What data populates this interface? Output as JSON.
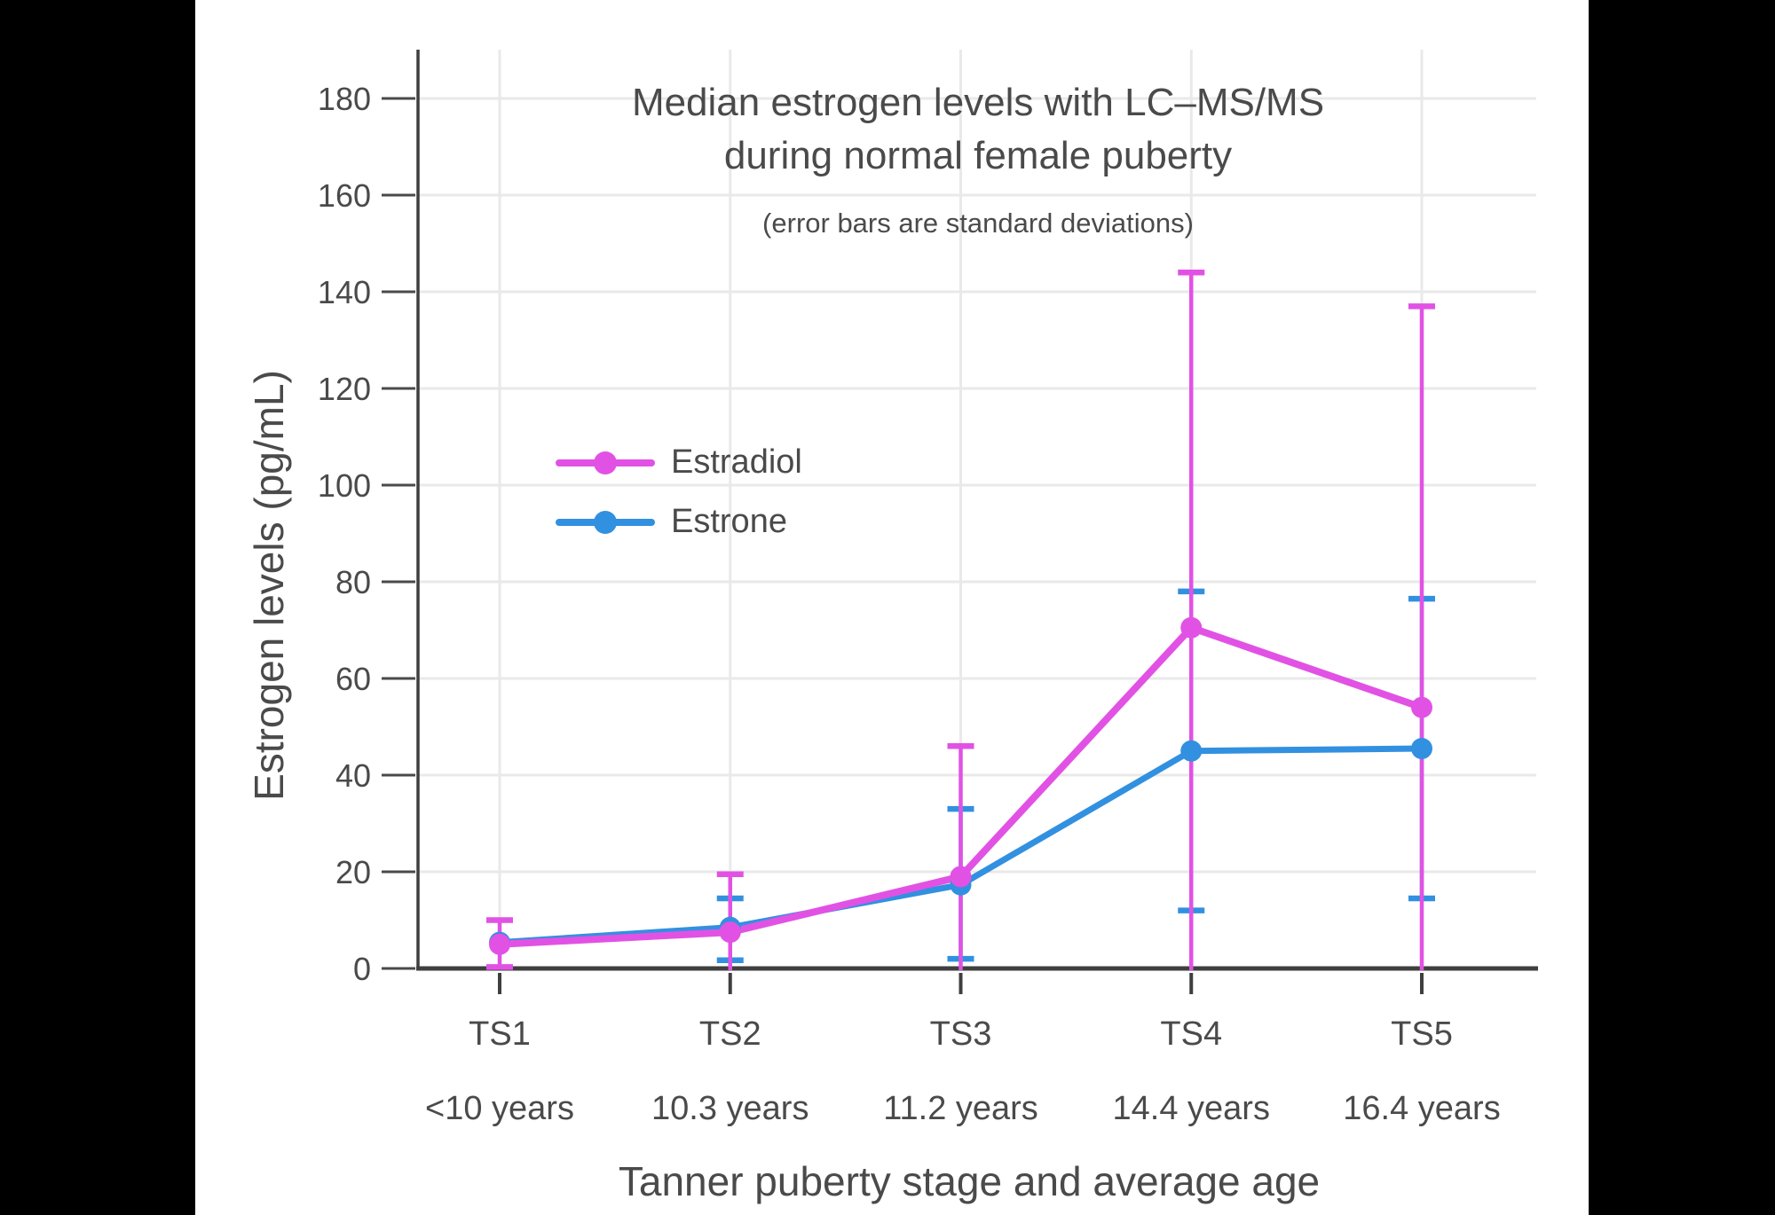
{
  "window": {
    "background": "#000000",
    "panel_background": "#ffffff"
  },
  "colors": {
    "axis": "#3f3f3f",
    "grid": "#e9e9e9",
    "text": "#4a4a4a",
    "estradiol": "#e152e4",
    "estrone": "#3290e0"
  },
  "chart_data": {
    "type": "line",
    "title_lines": [
      "Median estrogen levels with LC–MS/MS",
      "during normal female puberty"
    ],
    "subtitle": "(error bars are standard deviations)",
    "xlabel": "Tanner puberty stage and average age",
    "ylabel": "Estrogen levels (pg/mL)",
    "categories": [
      {
        "stage": "TS1",
        "age": "<10 years"
      },
      {
        "stage": "TS2",
        "age": "10.3 years"
      },
      {
        "stage": "TS3",
        "age": "11.2 years"
      },
      {
        "stage": "TS4",
        "age": "14.4 years"
      },
      {
        "stage": "TS5",
        "age": "16.4 years"
      }
    ],
    "yticks": [
      0,
      20,
      40,
      60,
      80,
      100,
      120,
      140,
      160,
      180
    ],
    "ylim": [
      0,
      190
    ],
    "grid": true,
    "legend_position": "inside-upper-left",
    "series": [
      {
        "name": "Estradiol",
        "color": "#e152e4",
        "values": [
          5,
          7.5,
          19,
          70.5,
          54
        ],
        "sd_high": [
          10,
          19.5,
          46,
          144,
          137
        ],
        "sd_low": [
          0.3,
          null,
          null,
          null,
          null
        ]
      },
      {
        "name": "Estrone",
        "color": "#3290e0",
        "values": [
          5.4,
          8.5,
          17.3,
          45,
          45.5
        ],
        "sd_high": [
          null,
          14.5,
          33,
          78,
          76.5
        ],
        "sd_low": [
          null,
          1.7,
          2,
          12,
          14.5
        ]
      }
    ]
  }
}
